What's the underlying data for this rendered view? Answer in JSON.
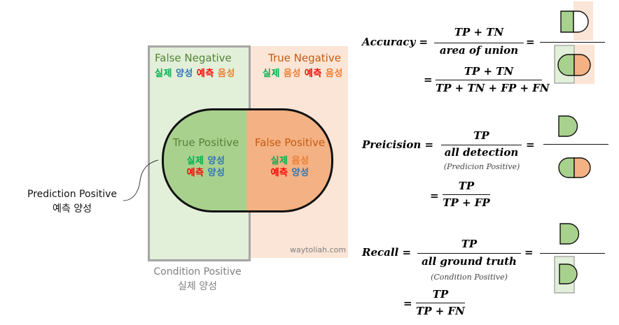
{
  "colors": {
    "green_fill": "#a9d18e",
    "green_light": "#e2efd9",
    "peach_light": "#fbe5d6",
    "orange_fill": "#f4b183",
    "gray_border": "#a5a5a5",
    "dark_green_text": "#548235",
    "orange_text": "#c55a11",
    "kor_green": "#00b050",
    "kor_blue": "#2e75b6",
    "kor_red": "#ff0000",
    "kor_orange": "#ed7d31"
  },
  "diagram": {
    "false_negative": {
      "title": "False Negative",
      "k1": "실제",
      "k2": "양성",
      "k3": "예측",
      "k4": "음성"
    },
    "true_negative": {
      "title": "True Negative",
      "k1": "실제",
      "k2": "음성",
      "k3": "예측",
      "k4": "음성"
    },
    "true_positive": {
      "title": "True Positive",
      "l1a": "실제",
      "l1b": "양성",
      "l2a": "예측",
      "l2b": "양성"
    },
    "false_positive": {
      "title": "False Positive",
      "l1a": "실제",
      "l1b": "음성",
      "l2a": "예측",
      "l2b": "양성"
    },
    "prediction_positive": {
      "line1": "Prediction Positive",
      "line2": "예측 양성"
    },
    "condition_positive": {
      "line1": "Condition Positive",
      "line2": "실제 양성"
    },
    "watermark": "waytoliah.com"
  },
  "formulas": {
    "accuracy": {
      "label": "Accuracy",
      "eq": "=",
      "num": "TP + TN",
      "den": "area of union",
      "eq2": "=",
      "eq3": "=",
      "num2": "TP + TN",
      "den2": "TP + TN + FP + FN"
    },
    "precision": {
      "label": "Preicision",
      "eq": "=",
      "num": "TP",
      "den": "all detection",
      "note": "(Predicion Positive)",
      "eq2": "=",
      "eq3": "=",
      "num2": "TP",
      "den2": "TP + FP"
    },
    "recall": {
      "label": "Recall",
      "eq": "=",
      "num": "TP",
      "den": "all ground truth",
      "note": "(Condition Positive)",
      "eq2": "=",
      "eq3": "=",
      "num2": "TP",
      "den2": "TP + FN"
    }
  }
}
